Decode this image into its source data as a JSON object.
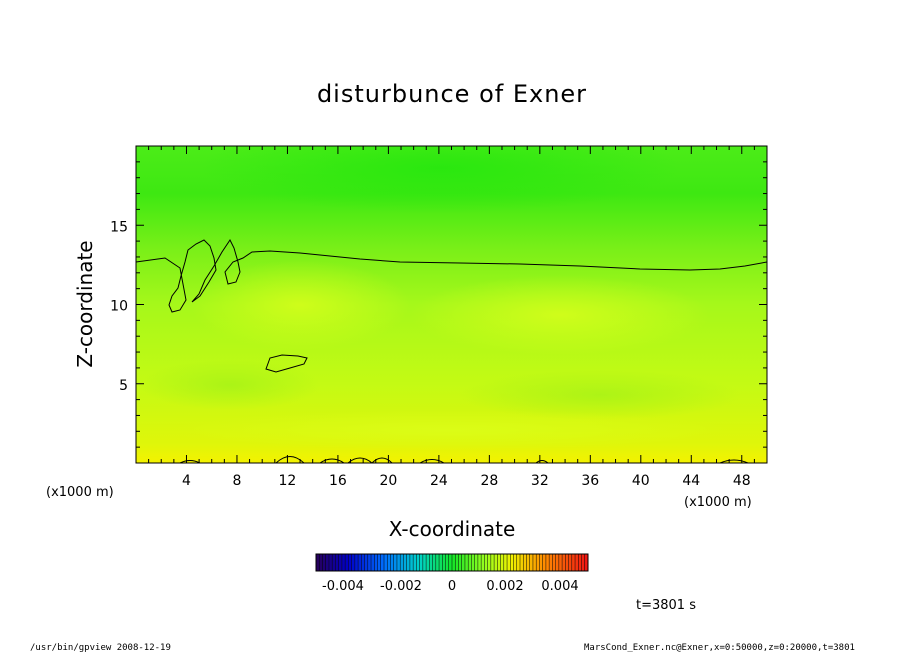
{
  "chart_data": {
    "type": "heatmap",
    "title": "disturbunce of Exner",
    "xlabel": "X-coordinate",
    "ylabel": "Z-coordinate",
    "x_unit_left": "(x1000 m)",
    "x_unit_right": "(x1000 m)",
    "xlim": [
      0,
      50
    ],
    "ylim": [
      0,
      20
    ],
    "x_ticks": [
      4,
      8,
      12,
      16,
      20,
      24,
      28,
      32,
      36,
      40,
      44,
      48
    ],
    "y_ticks": [
      5,
      10,
      15
    ],
    "colorbar": {
      "min": -0.005,
      "max": 0.005,
      "tick_labels": [
        "-0.004",
        "-0.002",
        "0",
        "0.002",
        "0.004"
      ]
    },
    "colors": {
      "bottom_band": "#f4f200",
      "mid_field": "#c8ff1e",
      "upper_field": "#3cf014",
      "top_field": "#32e814",
      "contour": "#000000"
    },
    "time_label": "t=3801 s"
  },
  "footer": {
    "left": "/usr/bin/gpview   2008-12-19",
    "right": "MarsCond_Exner.nc@Exner,x=0:50000,z=0:20000,t=3801"
  }
}
